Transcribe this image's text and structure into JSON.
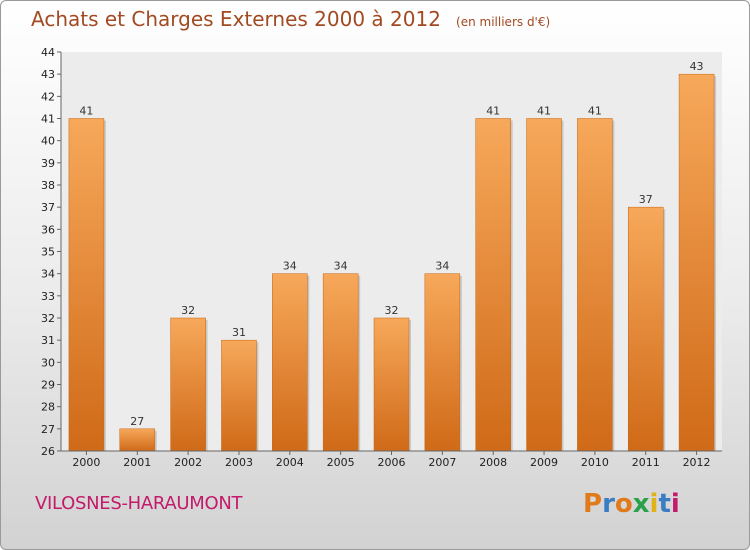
{
  "title": "Achats et Charges Externes 2000 à 2012",
  "subtitle": "(en milliers d'€)",
  "commune": "VILOSNES-HARAUMONT",
  "brand": {
    "letters": [
      "P",
      "r",
      "o",
      "x",
      "i",
      "t",
      "i"
    ],
    "colors": [
      "#e07a1a",
      "#3b7dc4",
      "#e07a1a",
      "#2aa14a",
      "#e0b21a",
      "#3b7dc4",
      "#c41a6b"
    ]
  },
  "colors": {
    "bar_light": "#f7a85a",
    "bar_dark": "#cf6a18",
    "title": "#a24a22",
    "commune": "#c41a6b"
  },
  "chart_data": {
    "type": "bar",
    "categories": [
      "2000",
      "2001",
      "2002",
      "2003",
      "2004",
      "2005",
      "2006",
      "2007",
      "2008",
      "2009",
      "2010",
      "2011",
      "2012"
    ],
    "values": [
      41,
      27,
      32,
      31,
      34,
      34,
      32,
      34,
      41,
      41,
      41,
      37,
      43
    ],
    "ylim": [
      26,
      44
    ],
    "yticks": [
      26,
      27,
      28,
      29,
      30,
      31,
      32,
      33,
      34,
      35,
      36,
      37,
      38,
      39,
      40,
      41,
      42,
      43,
      44
    ],
    "grid": false,
    "data_labels": true
  }
}
